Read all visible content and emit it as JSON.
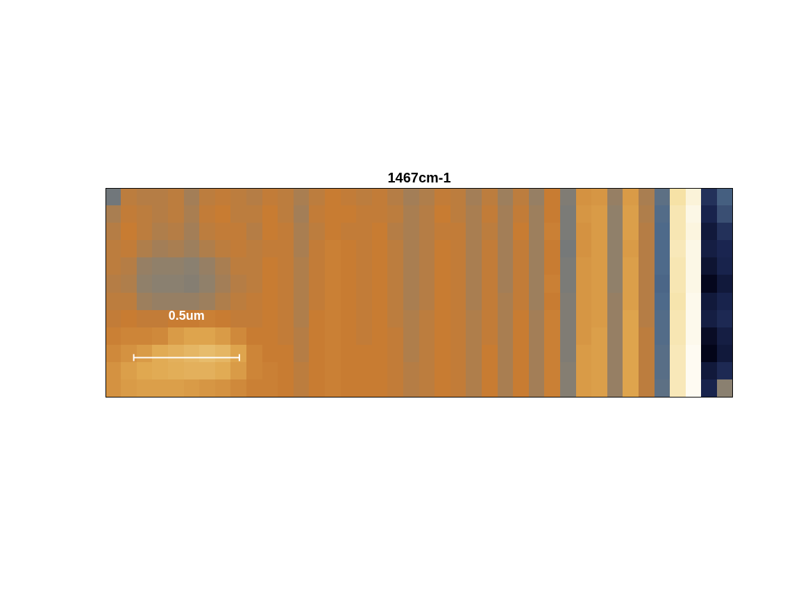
{
  "chart_data": {
    "type": "heatmap",
    "title": "1467cm-1",
    "xlim": [
      0,
      2.97
    ],
    "ylim": [
      0,
      0.99
    ],
    "tick_labels": false,
    "grid": false,
    "color_range": [
      0,
      1
    ],
    "scale_bar": {
      "length": 0.5,
      "label": "0.5um"
    },
    "cells": [
      [
        0.4,
        0.53,
        0.52,
        0.52,
        0.53,
        0.49,
        0.53,
        0.54,
        0.53,
        0.52,
        0.54,
        0.53,
        0.5,
        0.53,
        0.55,
        0.54,
        0.53,
        0.54,
        0.52,
        0.49,
        0.51,
        0.54,
        0.53,
        0.49,
        0.53,
        0.48,
        0.53,
        0.47,
        0.55,
        0.43,
        0.6,
        0.61,
        0.47,
        0.62,
        0.5,
        0.36,
        0.86,
        0.94,
        0.18,
        0.3
      ],
      [
        0.5,
        0.54,
        0.53,
        0.52,
        0.53,
        0.5,
        0.54,
        0.55,
        0.53,
        0.53,
        0.55,
        0.53,
        0.49,
        0.54,
        0.55,
        0.55,
        0.54,
        0.54,
        0.53,
        0.5,
        0.52,
        0.55,
        0.53,
        0.5,
        0.54,
        0.49,
        0.54,
        0.48,
        0.55,
        0.42,
        0.61,
        0.62,
        0.46,
        0.63,
        0.51,
        0.34,
        0.88,
        0.96,
        0.14,
        0.26
      ],
      [
        0.52,
        0.55,
        0.53,
        0.51,
        0.52,
        0.49,
        0.53,
        0.54,
        0.54,
        0.52,
        0.55,
        0.54,
        0.5,
        0.53,
        0.55,
        0.54,
        0.54,
        0.55,
        0.52,
        0.5,
        0.52,
        0.54,
        0.54,
        0.5,
        0.53,
        0.49,
        0.55,
        0.48,
        0.56,
        0.42,
        0.6,
        0.62,
        0.46,
        0.63,
        0.52,
        0.33,
        0.88,
        0.95,
        0.1,
        0.18
      ],
      [
        0.53,
        0.54,
        0.51,
        0.49,
        0.5,
        0.48,
        0.51,
        0.53,
        0.54,
        0.53,
        0.54,
        0.54,
        0.5,
        0.54,
        0.56,
        0.55,
        0.54,
        0.55,
        0.53,
        0.5,
        0.52,
        0.55,
        0.54,
        0.5,
        0.54,
        0.49,
        0.54,
        0.48,
        0.55,
        0.41,
        0.6,
        0.62,
        0.46,
        0.62,
        0.52,
        0.33,
        0.89,
        0.96,
        0.12,
        0.15
      ],
      [
        0.53,
        0.52,
        0.47,
        0.46,
        0.46,
        0.45,
        0.47,
        0.5,
        0.53,
        0.53,
        0.55,
        0.54,
        0.51,
        0.54,
        0.56,
        0.55,
        0.54,
        0.55,
        0.53,
        0.5,
        0.52,
        0.55,
        0.54,
        0.5,
        0.54,
        0.49,
        0.54,
        0.48,
        0.55,
        0.42,
        0.61,
        0.62,
        0.46,
        0.63,
        0.52,
        0.33,
        0.88,
        0.96,
        0.08,
        0.14
      ],
      [
        0.52,
        0.51,
        0.46,
        0.45,
        0.45,
        0.44,
        0.46,
        0.49,
        0.52,
        0.53,
        0.55,
        0.54,
        0.51,
        0.54,
        0.56,
        0.55,
        0.54,
        0.55,
        0.53,
        0.5,
        0.52,
        0.55,
        0.54,
        0.5,
        0.54,
        0.49,
        0.54,
        0.48,
        0.56,
        0.42,
        0.61,
        0.62,
        0.46,
        0.63,
        0.52,
        0.32,
        0.88,
        0.96,
        0.03,
        0.1
      ],
      [
        0.53,
        0.53,
        0.48,
        0.47,
        0.47,
        0.47,
        0.48,
        0.51,
        0.53,
        0.54,
        0.55,
        0.54,
        0.51,
        0.54,
        0.56,
        0.55,
        0.54,
        0.55,
        0.53,
        0.5,
        0.52,
        0.55,
        0.54,
        0.5,
        0.54,
        0.5,
        0.54,
        0.48,
        0.55,
        0.43,
        0.61,
        0.62,
        0.47,
        0.63,
        0.52,
        0.33,
        0.87,
        0.97,
        0.1,
        0.14
      ],
      [
        0.54,
        0.55,
        0.54,
        0.54,
        0.55,
        0.55,
        0.56,
        0.55,
        0.54,
        0.54,
        0.55,
        0.54,
        0.51,
        0.55,
        0.56,
        0.55,
        0.54,
        0.55,
        0.53,
        0.51,
        0.53,
        0.55,
        0.54,
        0.51,
        0.54,
        0.5,
        0.55,
        0.49,
        0.56,
        0.43,
        0.61,
        0.62,
        0.47,
        0.64,
        0.52,
        0.34,
        0.88,
        0.97,
        0.12,
        0.16
      ],
      [
        0.56,
        0.57,
        0.57,
        0.58,
        0.62,
        0.64,
        0.64,
        0.62,
        0.58,
        0.55,
        0.55,
        0.54,
        0.52,
        0.55,
        0.56,
        0.55,
        0.54,
        0.55,
        0.54,
        0.51,
        0.53,
        0.55,
        0.54,
        0.51,
        0.54,
        0.5,
        0.55,
        0.49,
        0.56,
        0.43,
        0.61,
        0.63,
        0.47,
        0.64,
        0.53,
        0.34,
        0.88,
        0.97,
        0.05,
        0.12
      ],
      [
        0.58,
        0.6,
        0.62,
        0.66,
        0.68,
        0.7,
        0.72,
        0.7,
        0.64,
        0.57,
        0.55,
        0.55,
        0.52,
        0.55,
        0.56,
        0.55,
        0.55,
        0.55,
        0.54,
        0.51,
        0.53,
        0.55,
        0.54,
        0.51,
        0.55,
        0.5,
        0.55,
        0.49,
        0.56,
        0.43,
        0.62,
        0.63,
        0.47,
        0.64,
        0.53,
        0.35,
        0.89,
        0.98,
        0.02,
        0.1
      ],
      [
        0.6,
        0.63,
        0.65,
        0.66,
        0.67,
        0.68,
        0.68,
        0.66,
        0.62,
        0.57,
        0.56,
        0.55,
        0.53,
        0.55,
        0.56,
        0.55,
        0.55,
        0.55,
        0.54,
        0.52,
        0.53,
        0.55,
        0.54,
        0.51,
        0.55,
        0.5,
        0.55,
        0.49,
        0.56,
        0.44,
        0.62,
        0.63,
        0.47,
        0.64,
        0.53,
        0.35,
        0.89,
        0.98,
        0.1,
        0.16
      ],
      [
        0.6,
        0.62,
        0.63,
        0.63,
        0.63,
        0.62,
        0.61,
        0.6,
        0.58,
        0.56,
        0.56,
        0.55,
        0.53,
        0.55,
        0.56,
        0.55,
        0.55,
        0.55,
        0.54,
        0.52,
        0.53,
        0.55,
        0.54,
        0.51,
        0.55,
        0.5,
        0.55,
        0.49,
        0.56,
        0.44,
        0.62,
        0.63,
        0.47,
        0.64,
        0.53,
        0.36,
        0.89,
        0.98,
        0.14,
        0.45
      ]
    ]
  }
}
